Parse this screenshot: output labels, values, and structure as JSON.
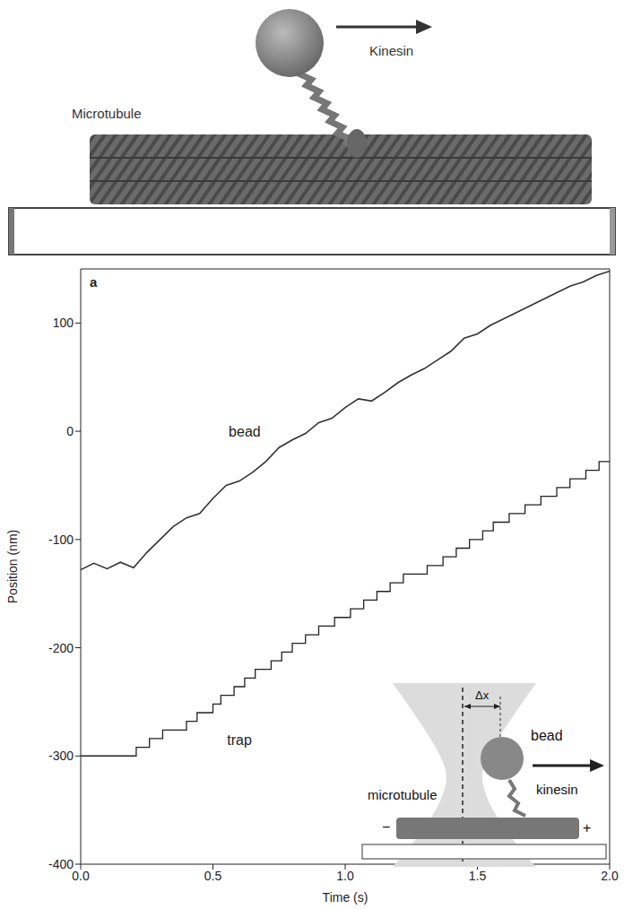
{
  "diagram": {
    "labels": {
      "kinesin": "Kinesin",
      "microtubule": "Microtubule"
    }
  },
  "chart_data": {
    "type": "line",
    "panel_label": "a",
    "x_label": "Time (s)",
    "y_label": "Position (nm)",
    "xlim": [
      0,
      2
    ],
    "ylim": [
      -400,
      150
    ],
    "xticks": [
      {
        "value": 0,
        "label": "0.0"
      },
      0.5,
      {
        "value": 1,
        "label": "1.0"
      },
      1.5,
      {
        "value": 2,
        "label": "2.0"
      }
    ],
    "yticks": [
      -400,
      -300,
      -200,
      -100,
      0,
      100
    ],
    "grid": false,
    "annotations": [
      {
        "text": "bead",
        "x": 0.62,
        "y": 0
      },
      {
        "text": "trap",
        "x": 0.6,
        "y": -285
      }
    ],
    "series": [
      {
        "name": "bead",
        "color": "#333333",
        "line_style": "solid",
        "x": [
          0,
          0.05,
          0.1,
          0.15,
          0.2,
          0.25,
          0.3,
          0.35,
          0.4,
          0.45,
          0.5,
          0.55,
          0.6,
          0.65,
          0.7,
          0.75,
          0.8,
          0.85,
          0.9,
          0.95,
          1.0,
          1.05,
          1.1,
          1.15,
          1.2,
          1.25,
          1.3,
          1.35,
          1.4,
          1.45,
          1.5,
          1.55,
          1.6,
          1.65,
          1.7,
          1.75,
          1.8,
          1.85,
          1.9,
          1.95,
          2.0
        ],
        "values": [
          -128,
          -122,
          -127,
          -121,
          -126,
          -112,
          -100,
          -88,
          -80,
          -76,
          -62,
          -50,
          -46,
          -38,
          -28,
          -15,
          -8,
          -2,
          8,
          12,
          22,
          30,
          28,
          36,
          45,
          52,
          58,
          66,
          74,
          86,
          90,
          98,
          104,
          110,
          116,
          122,
          128,
          134,
          138,
          144,
          148
        ]
      },
      {
        "name": "trap",
        "color": "#222222",
        "line_style": "step",
        "x": [
          0,
          0.21,
          0.26,
          0.31,
          0.4,
          0.44,
          0.5,
          0.53,
          0.58,
          0.62,
          0.66,
          0.72,
          0.76,
          0.8,
          0.85,
          0.9,
          0.96,
          1.02,
          1.07,
          1.12,
          1.17,
          1.22,
          1.31,
          1.37,
          1.42,
          1.47,
          1.52,
          1.56,
          1.62,
          1.68,
          1.74,
          1.8,
          1.85,
          1.91,
          1.96,
          2.0
        ],
        "values": [
          -300,
          -292,
          -284,
          -276,
          -268,
          -260,
          -252,
          -244,
          -236,
          -228,
          -220,
          -212,
          -204,
          -196,
          -188,
          -180,
          -172,
          -164,
          -156,
          -148,
          -140,
          -132,
          -124,
          -116,
          -108,
          -100,
          -92,
          -84,
          -76,
          -68,
          -60,
          -52,
          -44,
          -36,
          -28,
          -28
        ]
      }
    ],
    "inset": {
      "bead": "bead",
      "kinesin": "kinesin",
      "microtubule": "microtubule",
      "minus_end": "−",
      "plus_end": "+",
      "displacement": "Δx"
    }
  }
}
